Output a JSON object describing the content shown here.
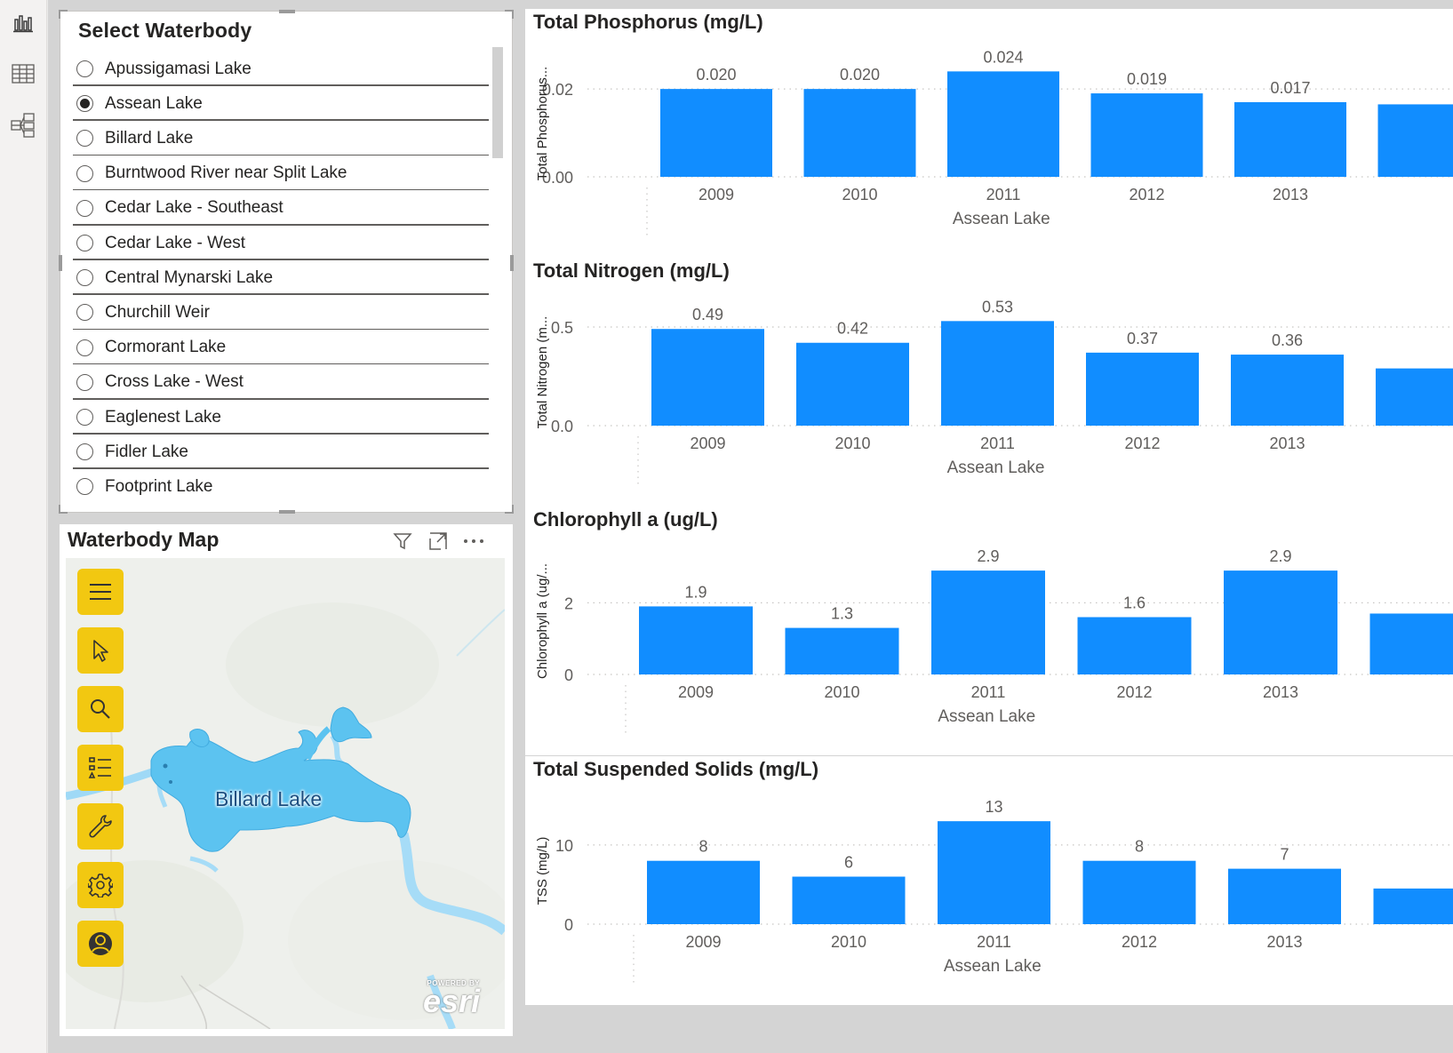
{
  "rail": {
    "items": [
      {
        "name": "report-view-icon",
        "active": true
      },
      {
        "name": "data-view-icon",
        "active": false
      },
      {
        "name": "model-view-icon",
        "active": false
      }
    ]
  },
  "slicer": {
    "title": "Select Waterbody",
    "selected": "Assean Lake",
    "items": [
      {
        "label": "Apussigamasi Lake",
        "checked": false
      },
      {
        "label": "Assean Lake",
        "checked": true
      },
      {
        "label": "Billard Lake",
        "checked": false
      },
      {
        "label": "Burntwood River near Split Lake",
        "checked": false
      },
      {
        "label": "Cedar Lake - Southeast",
        "checked": false
      },
      {
        "label": "Cedar Lake - West",
        "checked": false
      },
      {
        "label": "Central Mynarski Lake",
        "checked": false
      },
      {
        "label": "Churchill Weir",
        "checked": false
      },
      {
        "label": "Cormorant Lake",
        "checked": false
      },
      {
        "label": "Cross Lake - West",
        "checked": false
      },
      {
        "label": "Eaglenest Lake",
        "checked": false
      },
      {
        "label": "Fidler Lake",
        "checked": false
      },
      {
        "label": "Footprint Lake",
        "checked": false
      }
    ]
  },
  "map": {
    "title": "Waterbody Map",
    "lake_label": "Billard Lake",
    "logo_powered": "POWERED BY",
    "logo_word": "esri",
    "tools": [
      "menu-icon",
      "select-pointer-icon",
      "search-icon",
      "legend-list-icon",
      "wrench-icon",
      "gear-icon",
      "user-avatar-icon"
    ],
    "header_icons": [
      "filter-icon",
      "focus-mode-icon",
      "more-options-icon"
    ]
  },
  "colors": {
    "bar": "#118DFF",
    "tool_yellow": "#F2C811",
    "lake_fill": "#5cc3f0",
    "canvas_bg": "#d4d4d4"
  },
  "chart_data": [
    {
      "type": "bar",
      "title": "Total Phosphorus (mg/L)",
      "ylabel": "Total Phosphorus...",
      "xlabel": "Assean Lake",
      "categories": [
        "2009",
        "2010",
        "2011",
        "2012",
        "2013"
      ],
      "values": [
        0.02,
        0.02,
        0.024,
        0.019,
        0.017
      ],
      "data_labels": [
        "0.020",
        "0.020",
        "0.024",
        "0.019",
        "0.017"
      ],
      "yticks": [
        0,
        0.02
      ],
      "ytick_labels": [
        "0.00",
        "0.02"
      ],
      "ylim": [
        0,
        0.0265
      ],
      "partial_value": 0.0165
    },
    {
      "type": "bar",
      "title": "Total Nitrogen (mg/L)",
      "ylabel": "Total Nitrogen (m...",
      "xlabel": "Assean Lake",
      "categories": [
        "2009",
        "2010",
        "2011",
        "2012",
        "2013"
      ],
      "values": [
        0.49,
        0.42,
        0.53,
        0.37,
        0.36
      ],
      "data_labels": [
        "0.49",
        "0.42",
        "0.53",
        "0.37",
        "0.36"
      ],
      "yticks": [
        0,
        0.5
      ],
      "ytick_labels": [
        "0.0",
        "0.5"
      ],
      "ylim": [
        0,
        0.59
      ],
      "partial_value": 0.29
    },
    {
      "type": "bar",
      "title": "Chlorophyll a (ug/L)",
      "ylabel": "Chlorophyll a (ug/...",
      "xlabel": "Assean Lake",
      "categories": [
        "2009",
        "2010",
        "2011",
        "2012",
        "2013"
      ],
      "values": [
        1.9,
        1.3,
        2.9,
        1.6,
        2.9
      ],
      "data_labels": [
        "1.9",
        "1.3",
        "2.9",
        "1.6",
        "2.9"
      ],
      "yticks": [
        0,
        2
      ],
      "ytick_labels": [
        "0",
        "2"
      ],
      "ylim": [
        0,
        3.25
      ],
      "partial_value": 1.7
    },
    {
      "type": "bar",
      "title": "Total Suspended Solids (mg/L)",
      "ylabel": "TSS (mg/L)",
      "xlabel": "Assean Lake",
      "categories": [
        "2009",
        "2010",
        "2011",
        "2012",
        "2013"
      ],
      "values": [
        8,
        6,
        13,
        8,
        7
      ],
      "data_labels": [
        "8",
        "6",
        "13",
        "8",
        "7"
      ],
      "yticks": [
        0,
        10
      ],
      "ytick_labels": [
        "0",
        "10"
      ],
      "ylim": [
        0,
        14.7
      ],
      "partial_value": 4.5
    }
  ]
}
